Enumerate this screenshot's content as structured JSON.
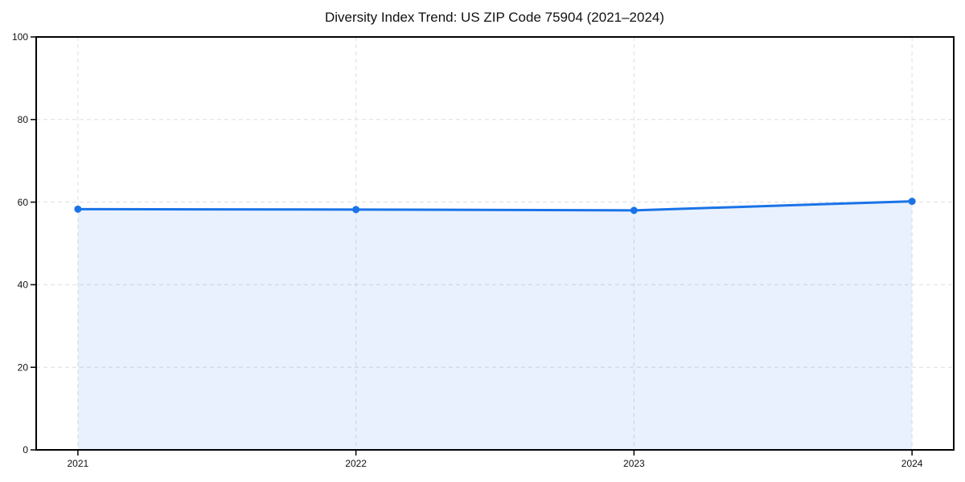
{
  "chart_data": {
    "type": "line",
    "area_fill": true,
    "title": "Diversity Index Trend: US ZIP Code 75904 (2021–2024)",
    "xlabel": "",
    "ylabel": "",
    "x": [
      2021,
      2022,
      2023,
      2024
    ],
    "series": [
      {
        "name": "Diversity Index",
        "values": [
          58.3,
          58.2,
          58.0,
          60.2
        ]
      }
    ],
    "xticks": [
      2021,
      2022,
      2023,
      2024
    ],
    "xtick_labels": [
      "2021",
      "2022",
      "2023",
      "2024"
    ],
    "yticks": [
      0,
      20,
      40,
      60,
      80,
      100
    ],
    "ytick_labels": [
      "0",
      "20",
      "40",
      "60",
      "80",
      "100"
    ],
    "xlim": [
      2020.85,
      2024.15
    ],
    "ylim": [
      0,
      100
    ],
    "grid": true,
    "grid_style": "dashed",
    "legend": "none",
    "marker": "circle",
    "colors": {
      "line": "#1a73e8",
      "marker": "#1a73e8",
      "area": "rgba(26,115,232,0.10)",
      "grid": "#dedede",
      "spine": "#000000",
      "tick": "#000000",
      "text": "#111111"
    }
  }
}
